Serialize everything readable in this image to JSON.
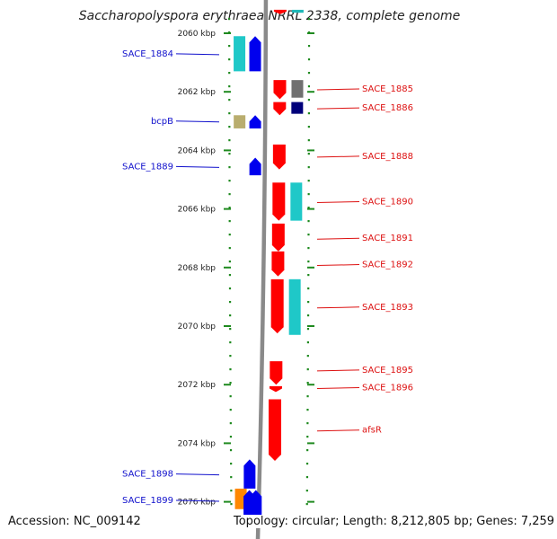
{
  "header": {
    "title": "Saccharopolyspora erythraea NRRL 2338, complete genome"
  },
  "footer": {
    "accession": "Accession: NC_009142",
    "topology": "Topology: circular; Length: 8,212,805 bp; Genes: 7,259"
  },
  "colors": {
    "backbone": "#8a8a8a",
    "dotted_track": "#1f8a1f",
    "forward_strand_gene": "#ff0000",
    "reverse_strand_gene": "#0000ee",
    "label_forward": "#dd1111",
    "label_reverse": "#1010cc"
  },
  "chart_data": {
    "type": "genome_map",
    "axis": {
      "unit": "kbp",
      "range": [
        2059.2,
        2076.8
      ],
      "ticks": [
        {
          "value": 2060,
          "label": "2060 kbp"
        },
        {
          "value": 2062,
          "label": "2062 kbp"
        },
        {
          "value": 2064,
          "label": "2064 kbp"
        },
        {
          "value": 2066,
          "label": "2066 kbp"
        },
        {
          "value": 2068,
          "label": "2068 kbp"
        },
        {
          "value": 2070,
          "label": "2070 kbp"
        },
        {
          "value": 2072,
          "label": "2072 kbp"
        },
        {
          "value": 2074,
          "label": "2074 kbp"
        },
        {
          "value": 2076,
          "label": "2076 kbp"
        }
      ]
    },
    "forward_genes": [
      {
        "start": 2059.2,
        "end": 2059.35
      },
      {
        "start": 2061.6,
        "end": 2062.25
      },
      {
        "start": 2062.35,
        "end": 2062.8
      },
      {
        "start": 2063.8,
        "end": 2064.65
      },
      {
        "start": 2065.1,
        "end": 2066.4
      },
      {
        "start": 2066.5,
        "end": 2067.45
      },
      {
        "start": 2067.45,
        "end": 2068.3
      },
      {
        "start": 2068.4,
        "end": 2070.25
      },
      {
        "start": 2071.2,
        "end": 2072.0
      },
      {
        "start": 2072.05,
        "end": 2072.25
      },
      {
        "start": 2072.5,
        "end": 2074.6
      }
    ],
    "reverse_genes": [
      {
        "start": 2060.1,
        "end": 2061.3
      },
      {
        "start": 2062.8,
        "end": 2063.25
      },
      {
        "start": 2064.25,
        "end": 2064.85
      },
      {
        "start": 2074.55,
        "end": 2075.55
      },
      {
        "start": 2075.6,
        "end": 2076.8
      },
      {
        "start": 2075.6,
        "end": 2076.8
      }
    ],
    "cds_blocks": [
      {
        "track": "forward",
        "start": 2059.2,
        "end": 2059.3,
        "color": "#1fb8b8"
      },
      {
        "track": "forward",
        "start": 2061.6,
        "end": 2062.2,
        "color": "#707070"
      },
      {
        "track": "forward",
        "start": 2062.35,
        "end": 2062.75,
        "color": "#00007a"
      },
      {
        "track": "forward",
        "start": 2065.1,
        "end": 2066.4,
        "color": "#1fc8c8"
      },
      {
        "track": "forward",
        "start": 2068.4,
        "end": 2070.3,
        "color": "#1fc8c8"
      },
      {
        "track": "reverse",
        "start": 2060.1,
        "end": 2061.3,
        "color": "#1fc8c8"
      },
      {
        "track": "reverse",
        "start": 2062.8,
        "end": 2063.25,
        "color": "#b9ad6e"
      },
      {
        "track": "reverse",
        "start": 2075.55,
        "end": 2076.25,
        "color": "#ff8800"
      }
    ],
    "labels_reverse": [
      {
        "text": "SACE_1884",
        "pos": 2060.7
      },
      {
        "text": "bcpB",
        "pos": 2063.0
      },
      {
        "text": "SACE_1889",
        "pos": 2064.55
      },
      {
        "text": "SACE_1898",
        "pos": 2075.05
      },
      {
        "text": "SACE_1899",
        "pos": 2075.95
      }
    ],
    "labels_forward": [
      {
        "text": "SACE_1885",
        "pos": 2061.9
      },
      {
        "text": "SACE_1886",
        "pos": 2062.55
      },
      {
        "text": "SACE_1888",
        "pos": 2064.2
      },
      {
        "text": "SACE_1890",
        "pos": 2065.75
      },
      {
        "text": "SACE_1891",
        "pos": 2067.0
      },
      {
        "text": "SACE_1892",
        "pos": 2067.9
      },
      {
        "text": "SACE_1893",
        "pos": 2069.35
      },
      {
        "text": "SACE_1895",
        "pos": 2071.5
      },
      {
        "text": "SACE_1896",
        "pos": 2072.1
      },
      {
        "text": "afsR",
        "pos": 2073.55
      }
    ]
  }
}
